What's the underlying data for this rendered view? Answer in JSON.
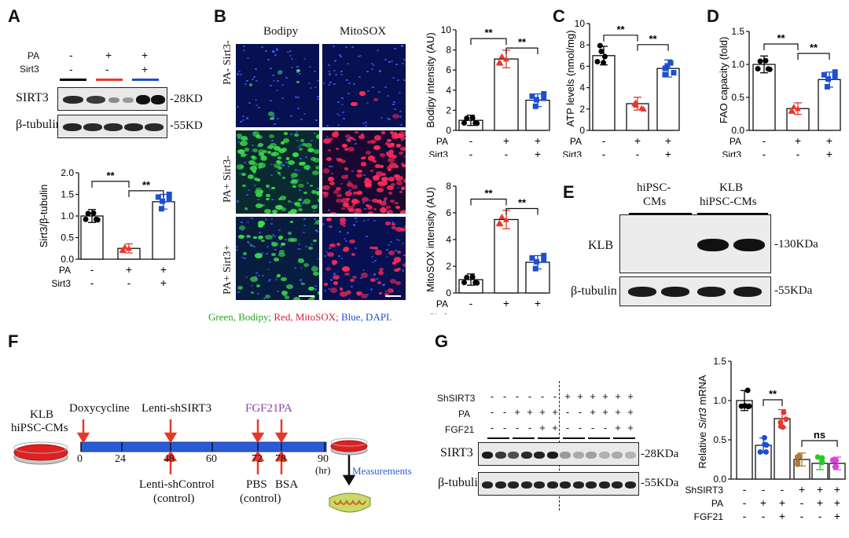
{
  "panel_letters": {
    "a": "A",
    "b": "B",
    "c": "C",
    "d": "D",
    "e": "E",
    "f": "F",
    "g": "G"
  },
  "colors": {
    "ctrl": "#000000",
    "pa": "#e8382a",
    "sirt3": "#1e4fd0",
    "green": "#22aa22",
    "red": "#d81c3c",
    "blue": "#1e4fd0",
    "purple": "#8e44ad",
    "arrow": "#e8382a",
    "timeline": "#2a5bd7"
  },
  "panel_a": {
    "row_pa": "PA",
    "row_sirt3": "Sirt3",
    "cond_pa": [
      "-",
      "+",
      "+"
    ],
    "cond_sirt3": [
      "-",
      "-",
      "+"
    ],
    "blot_labels": [
      "SIRT3",
      "β-tubulin"
    ],
    "mw_labels": [
      "-28KD",
      "-55KD"
    ]
  },
  "panel_b": {
    "col_labels": [
      "Bodipy",
      "MitoSOX"
    ],
    "row_labels": [
      "PA- Sirt3-",
      "PA+ Sirt3-",
      "PA+ Sirt3+"
    ],
    "legend_green": "Green, Bodipy; ",
    "legend_red": "Red, MitoSOX; ",
    "legend_blue": "Blue, DAPI."
  },
  "panel_e": {
    "col_labels": [
      "hiPSC-",
      "CMs",
      "KLB",
      "hiPSC-CMs"
    ],
    "row_labels": [
      "KLB",
      "β-tubulin"
    ],
    "mw_labels": [
      "-130KDa",
      "-55KDa"
    ]
  },
  "panel_f": {
    "start_line1": "KLB",
    "start_line2": "hiPSC-CMs",
    "top_labels": [
      "Doxycycline",
      "Lenti-shSIRT3",
      "FGF21",
      "PA"
    ],
    "ticks": [
      "0",
      "24",
      "48",
      "60",
      "72",
      "78",
      "90"
    ],
    "hr": "(hr)",
    "bottom_labels": [
      "Lenti-shControl",
      "(control)",
      "PBS",
      "(control)",
      "BSA"
    ],
    "measure": "Measurements"
  },
  "panel_g": {
    "rows": [
      "ShSIRT3",
      "PA",
      "FGF21"
    ],
    "cond_sh": [
      "-",
      "-",
      "-",
      "-",
      "-",
      "-",
      "+",
      "+",
      "+",
      "+",
      "+",
      "+"
    ],
    "cond_pa": [
      "-",
      "-",
      "+",
      "+",
      "+",
      "+",
      "-",
      "-",
      "+",
      "+",
      "+",
      "+"
    ],
    "cond_fgf": [
      "-",
      "-",
      "-",
      "-",
      "+",
      "+",
      "-",
      "-",
      "-",
      "-",
      "+",
      "+"
    ],
    "blot_labels": [
      "SIRT3",
      "β-tubulin"
    ],
    "mw_labels": [
      "-28KDa",
      "-55KDa"
    ]
  },
  "chart_data": [
    {
      "id": "A",
      "type": "bar",
      "categories": [
        "PA- Sirt3-",
        "PA+ Sirt3-",
        "PA+ Sirt3+"
      ],
      "values": [
        1.0,
        0.25,
        1.33
      ],
      "ylabel": "Sirt3/β-tubulin",
      "ylim": [
        0,
        2.0
      ],
      "yticks": [
        "0.0",
        "0.5",
        "1.0",
        "1.5",
        "2.0"
      ],
      "cond_rows": [
        "PA",
        "Sirt3"
      ],
      "cond_pa": [
        "-",
        "+",
        "+"
      ],
      "cond_sirt3": [
        "-",
        "-",
        "+"
      ],
      "sig": [
        "**",
        "**"
      ],
      "colors": [
        "#000000",
        "#e8382a",
        "#1e4fd0"
      ]
    },
    {
      "id": "B1",
      "type": "bar",
      "categories": [
        "PA- Sirt3-",
        "PA+ Sirt3-",
        "PA+ Sirt3+"
      ],
      "values": [
        1.0,
        7.1,
        3.0
      ],
      "ylabel": "Bodipy intensity (AU)",
      "ylim": [
        0,
        10
      ],
      "yticks": [
        "0",
        "2",
        "4",
        "6",
        "8",
        "10"
      ],
      "cond_rows": [
        "PA",
        "Sirt3"
      ],
      "cond_pa": [
        "-",
        "+",
        "+"
      ],
      "cond_sirt3": [
        "-",
        "-",
        "+"
      ],
      "sig": [
        "**",
        "**"
      ],
      "colors": [
        "#000000",
        "#e8382a",
        "#1e4fd0"
      ]
    },
    {
      "id": "B2",
      "type": "bar",
      "categories": [
        "PA- Sirt3-",
        "PA+ Sirt3-",
        "PA+ Sirt3+"
      ],
      "values": [
        1.0,
        5.5,
        2.3
      ],
      "ylabel": "MitoSOX intensity (AU)",
      "ylim": [
        0,
        8
      ],
      "yticks": [
        "0",
        "2",
        "4",
        "6",
        "8"
      ],
      "cond_rows": [
        "PA",
        "Sirt3"
      ],
      "cond_pa": [
        "-",
        "+",
        "+"
      ],
      "cond_sirt3": [
        "-",
        "-",
        "+"
      ],
      "sig": [
        "**",
        "**"
      ],
      "colors": [
        "#000000",
        "#e8382a",
        "#1e4fd0"
      ]
    },
    {
      "id": "C",
      "type": "bar",
      "categories": [
        "PA- Sirt3-",
        "PA+ Sirt3-",
        "PA+ Sirt3+"
      ],
      "values": [
        7.0,
        2.5,
        5.8
      ],
      "ylabel": "ATP levels (nmol/mg)",
      "ylim": [
        0,
        10
      ],
      "yticks": [
        "0",
        "2",
        "4",
        "6",
        "8",
        "10"
      ],
      "cond_rows": [
        "PA",
        "Sirt3"
      ],
      "cond_pa": [
        "-",
        "+",
        "+"
      ],
      "cond_sirt3": [
        "-",
        "-",
        "+"
      ],
      "sig": [
        "**",
        "**"
      ],
      "colors": [
        "#000000",
        "#e8382a",
        "#1e4fd0"
      ]
    },
    {
      "id": "D",
      "type": "bar",
      "categories": [
        "PA- Sirt3-",
        "PA+ Sirt3-",
        "PA+ Sirt3+"
      ],
      "values": [
        1.0,
        0.33,
        0.77
      ],
      "ylabel": "FAO capacity (fold)",
      "ylim": [
        0,
        1.5
      ],
      "yticks": [
        "0.0",
        "0.5",
        "1.0",
        "1.5"
      ],
      "cond_rows": [
        "PA",
        "Sirt3"
      ],
      "cond_pa": [
        "-",
        "+",
        "+"
      ],
      "cond_sirt3": [
        "-",
        "-",
        "+"
      ],
      "sig": [
        "**",
        "**"
      ],
      "colors": [
        "#000000",
        "#e8382a",
        "#1e4fd0"
      ]
    },
    {
      "id": "G",
      "type": "bar",
      "categories": [
        "1",
        "2",
        "3",
        "4",
        "5",
        "6"
      ],
      "values": [
        1.0,
        0.43,
        0.77,
        0.25,
        0.2,
        0.2
      ],
      "ylabel_parts": [
        "Relative ",
        "Sirt3",
        " mRNA"
      ],
      "ylim": [
        0,
        1.5
      ],
      "yticks": [
        "0.0",
        "0.5",
        "1.0",
        "1.5"
      ],
      "cond_rows": [
        "ShSIRT3",
        "PA",
        "FGF21"
      ],
      "cond_sh": [
        "-",
        "-",
        "-",
        "+",
        "+",
        "+"
      ],
      "cond_pa": [
        "-",
        "+",
        "+",
        "-",
        "+",
        "+"
      ],
      "cond_fgf": [
        "-",
        "-",
        "+",
        "-",
        "-",
        "+"
      ],
      "sig": [
        "**",
        "ns"
      ],
      "colors": [
        "#000000",
        "#1e4fd0",
        "#e8382a",
        "#b07a3a",
        "#22cc22",
        "#e040e0"
      ]
    }
  ]
}
